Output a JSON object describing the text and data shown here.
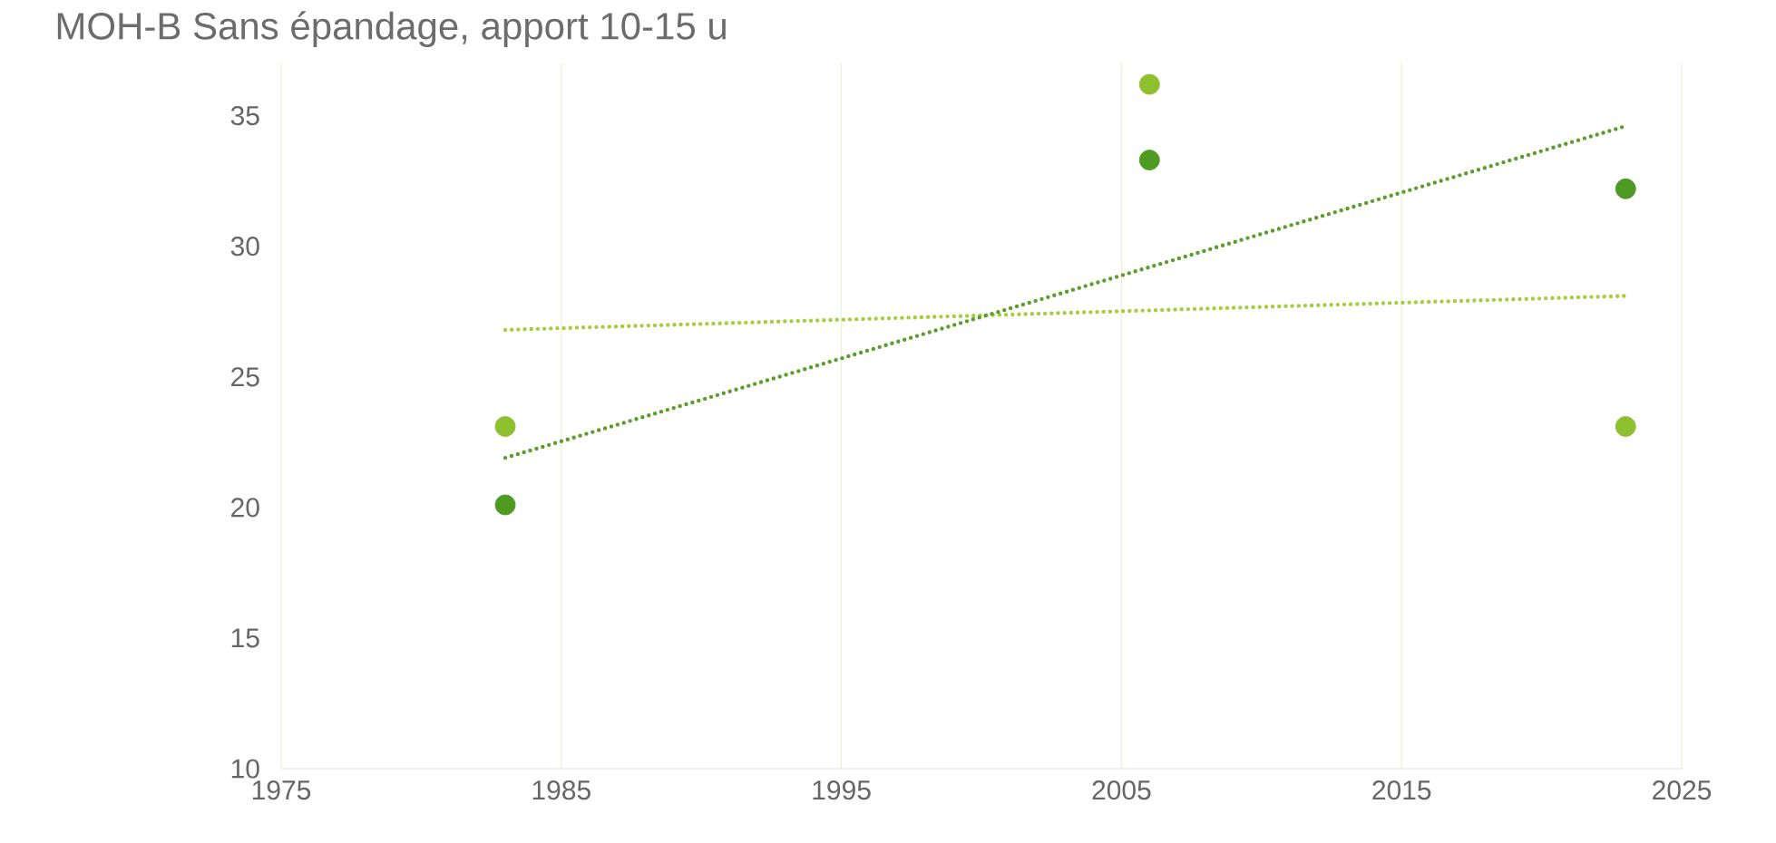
{
  "chart_data": {
    "type": "scatter",
    "title": "MOH-B Sans épandage, apport 10-15 u",
    "marker": "circle",
    "grid": "x",
    "xlim": [
      1975,
      2025
    ],
    "xticks": [
      1975,
      1985,
      1995,
      2005,
      2015,
      2025
    ],
    "ylim": [
      10,
      37
    ],
    "yticks": [
      10,
      15,
      20,
      25,
      30,
      35
    ],
    "series": [
      {
        "color": "#8dbf2e",
        "x": [
          1983,
          2006,
          2023
        ],
        "values": [
          23.1,
          36.2,
          23.1
        ]
      },
      {
        "color": "#4f9a22",
        "x": [
          1983,
          2006,
          2023
        ],
        "values": [
          20.1,
          33.3,
          32.2
        ]
      },
      {
        "type": "line",
        "marker": "none",
        "line_style": "dotted",
        "color": "#a8cc3c",
        "x": [
          1983,
          2023
        ],
        "values": [
          26.8,
          28.1
        ]
      },
      {
        "type": "line",
        "marker": "none",
        "line_style": "dotted",
        "color": "#5a9e2a",
        "x": [
          1983,
          2023
        ],
        "values": [
          21.9,
          34.6
        ]
      }
    ]
  }
}
